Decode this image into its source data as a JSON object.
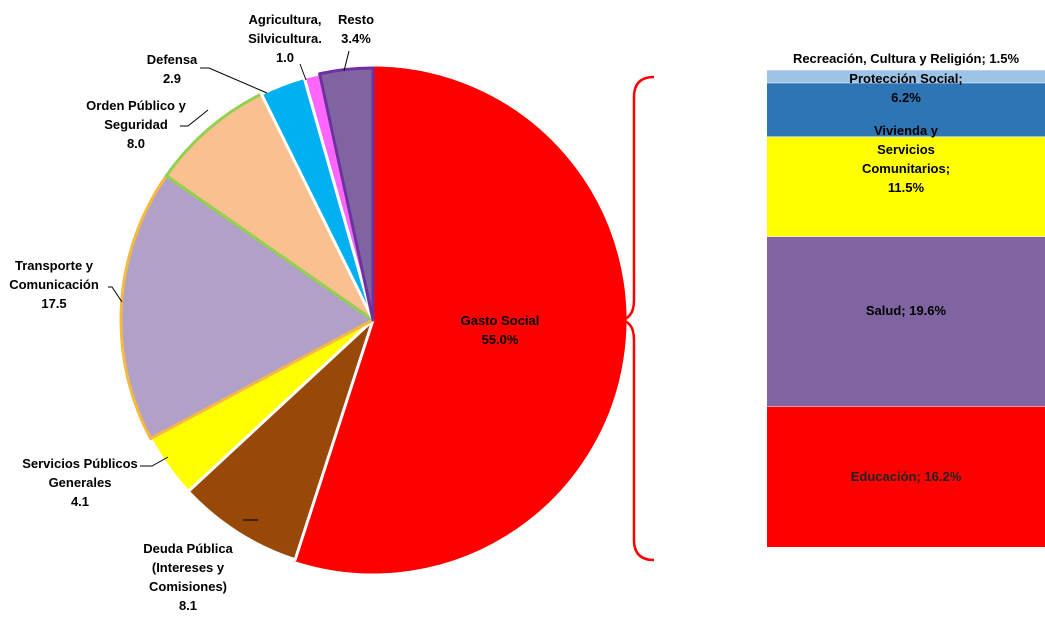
{
  "chart_data": [
    {
      "type": "pie",
      "slices": [
        {
          "label_lines": [
            "Gasto Social",
            "55.0%"
          ],
          "value": 55.0,
          "color": "#FF0000",
          "stroke": "#FF0000"
        },
        {
          "label_lines": [
            "Deuda Pública",
            "(Intereses y",
            "Comisiones)",
            "8.1"
          ],
          "value": 8.1,
          "color": "#984807",
          "stroke": "#FFFFFF"
        },
        {
          "label_lines": [
            "Servicios Públicos",
            "Generales",
            "4.1"
          ],
          "value": 4.1,
          "color": "#FFFF00",
          "stroke": "#FFFFFF"
        },
        {
          "label_lines": [
            "Transporte y",
            "Comunicación",
            "17.5"
          ],
          "value": 17.5,
          "color": "#B1A0C7",
          "stroke": "#F5B942"
        },
        {
          "label_lines": [
            "Orden Público y",
            "Seguridad",
            "8.0"
          ],
          "value": 8.0,
          "color": "#FAC090",
          "stroke": "#92D050"
        },
        {
          "label_lines": [
            "Defensa",
            "2.9"
          ],
          "value": 2.9,
          "color": "#00B0F0",
          "stroke": "#FFFFFF"
        },
        {
          "label_lines": [
            "Agricultura,",
            "Silvicultura.",
            "1.0"
          ],
          "value": 1.0,
          "color": "#FF66FF",
          "stroke": "#FFFFFF"
        },
        {
          "label_lines": [
            "Resto",
            "3.4%"
          ],
          "value": 3.4,
          "color": "#8064A2",
          "stroke": "#7030A0"
        }
      ]
    },
    {
      "type": "bar",
      "stacked": true,
      "segments": [
        {
          "label_lines": [
            "Educación; 16.2%"
          ],
          "value": 16.2,
          "color": "#FF0000",
          "text_color": "#222222"
        },
        {
          "label_lines": [
            "Salud; 19.6%"
          ],
          "value": 19.6,
          "color": "#8064A2",
          "text_color": "#000000"
        },
        {
          "label_lines": [
            "Vivienda y",
            "Servicios",
            "Comunitarios;",
            "11.5%"
          ],
          "value": 11.5,
          "color": "#FFFF00",
          "text_color": "#000000"
        },
        {
          "label_lines": [
            "Protección Social;",
            "6.2%"
          ],
          "value": 6.2,
          "color": "#2E75B6",
          "text_color": "#000000"
        },
        {
          "label_lines": [
            "Recreación, Cultura y Religión; 1.5%"
          ],
          "value": 1.5,
          "color": "#9DC3E6",
          "text_color": "#000000"
        }
      ]
    }
  ]
}
